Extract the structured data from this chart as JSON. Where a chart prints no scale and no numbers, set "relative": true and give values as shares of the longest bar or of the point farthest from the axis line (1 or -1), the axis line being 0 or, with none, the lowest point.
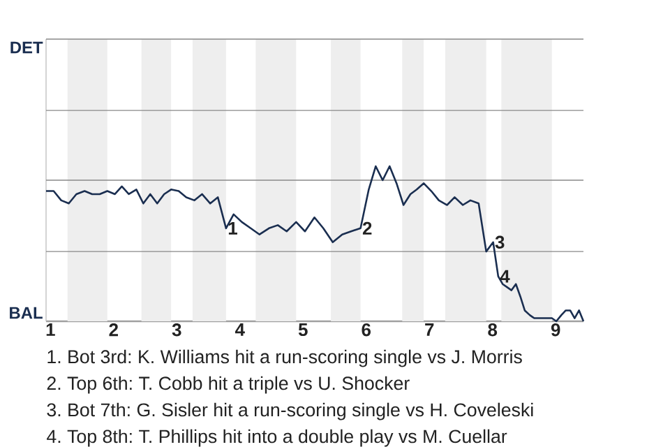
{
  "chart_data": {
    "type": "line",
    "relative": true,
    "x": [
      0.93,
      1.05,
      1.17,
      1.29,
      1.41,
      1.54,
      1.66,
      1.78,
      1.9,
      2.02,
      2.13,
      2.24,
      2.36,
      2.47,
      2.58,
      2.69,
      2.8,
      2.91,
      3.03,
      3.15,
      3.28,
      3.4,
      3.53,
      3.65,
      3.78,
      3.9,
      4.03,
      4.17,
      4.31,
      4.46,
      4.6,
      4.74,
      4.89,
      5.03,
      5.18,
      5.32,
      5.47,
      5.62,
      5.76,
      5.91,
      6.04,
      6.15,
      6.26,
      6.37,
      6.48,
      6.59,
      6.7,
      6.8,
      6.91,
      7.03,
      7.15,
      7.28,
      7.4,
      7.53,
      7.65,
      7.78,
      7.9,
      8.01,
      8.09,
      8.16,
      8.23,
      8.3,
      8.37,
      8.44,
      8.51,
      8.59,
      8.66,
      8.73,
      8.8,
      8.87,
      8.94,
      9.01,
      9.09,
      9.16,
      9.23,
      9.3,
      9.37,
      9.44
    ],
    "series": [
      {
        "color": "#1a2e50",
        "values": [
          0.84,
          0.84,
          0.78,
          0.76,
          0.82,
          0.84,
          0.82,
          0.82,
          0.84,
          0.82,
          0.87,
          0.82,
          0.85,
          0.76,
          0.82,
          0.76,
          0.82,
          0.85,
          0.84,
          0.8,
          0.78,
          0.82,
          0.76,
          0.8,
          0.6,
          0.69,
          0.64,
          0.6,
          0.56,
          0.6,
          0.62,
          0.58,
          0.64,
          0.58,
          0.67,
          0.6,
          0.51,
          0.56,
          0.58,
          0.6,
          0.85,
          1,
          0.91,
          1,
          0.89,
          0.75,
          0.82,
          0.85,
          0.89,
          0.84,
          0.78,
          0.75,
          0.8,
          0.75,
          0.78,
          0.76,
          0.45,
          0.51,
          0.29,
          0.24,
          0.22,
          0.2,
          0.24,
          0.16,
          0.07,
          0.04,
          0.02,
          0.02,
          0.02,
          0.02,
          0.02,
          0,
          0.04,
          0.07,
          0.07,
          0.02,
          0.07,
          0
        ]
      }
    ],
    "xlim": [
      0.93,
      9.44
    ],
    "xticks": [
      1,
      2,
      3,
      4,
      5,
      6,
      7,
      8,
      9
    ],
    "ref_lines": [
      {
        "axis": "y",
        "value": 0.45,
        "color": "#888888"
      },
      {
        "axis": "y",
        "value": 0.91,
        "color": "#888888"
      },
      {
        "axis": "y",
        "value": 1.36,
        "color": "#888888"
      },
      {
        "axis": "y",
        "value": 1.82,
        "color": "#888888"
      }
    ],
    "bands": [
      {
        "axis": "x",
        "from": 1.27,
        "to": 1.9,
        "color": "#eeeeee"
      },
      {
        "axis": "x",
        "from": 2.44,
        "to": 2.91,
        "color": "#eeeeee"
      },
      {
        "axis": "x",
        "from": 3.25,
        "to": 3.78,
        "color": "#eeeeee"
      },
      {
        "axis": "x",
        "from": 4.25,
        "to": 4.89,
        "color": "#eeeeee"
      },
      {
        "axis": "x",
        "from": 5.44,
        "to": 5.91,
        "color": "#eeeeee"
      },
      {
        "axis": "x",
        "from": 6.57,
        "to": 6.91,
        "color": "#eeeeee"
      },
      {
        "axis": "x",
        "from": 7.25,
        "to": 7.9,
        "color": "#eeeeee"
      },
      {
        "axis": "x",
        "from": 8.14,
        "to": 8.94,
        "color": "#eeeeee"
      }
    ],
    "annotations": [
      "DET",
      "BAL",
      {
        "text": "1",
        "x": 3.78,
        "y": 0.6
      },
      {
        "text": "2",
        "x": 5.91,
        "y": 0.6
      },
      {
        "text": "3",
        "x": 8.01,
        "y": 0.51
      },
      {
        "text": "4",
        "x": 8.09,
        "y": 0.29
      },
      "1. Bot 3rd: K. Williams hit a run-scoring single vs J. Morris",
      "2. Top 6th: T. Cobb hit a triple vs U. Shocker",
      "3. Bot 7th: G. Sisler hit a run-scoring single vs H. Coveleski",
      "4. Top 8th: T. Phillips hit into a double play vs M. Cuellar"
    ]
  }
}
